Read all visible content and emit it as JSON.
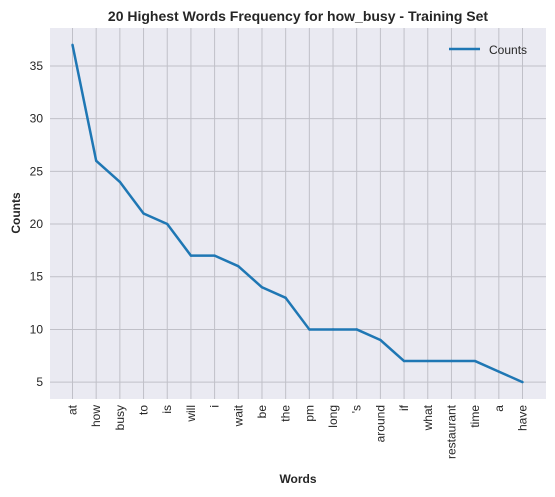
{
  "chart_data": {
    "type": "line",
    "title": "20 Highest Words Frequency for how_busy - Training Set",
    "xlabel": "Words",
    "ylabel": "Counts",
    "categories": [
      "at",
      "how",
      "busy",
      "to",
      "is",
      "will",
      "i",
      "wait",
      "be",
      "the",
      "pm",
      "long",
      "'s",
      "around",
      "if",
      "what",
      "restaurant",
      "time",
      "a",
      "have"
    ],
    "series": [
      {
        "name": "Counts",
        "values": [
          37,
          26,
          24,
          21,
          20,
          17,
          17,
          16,
          14,
          13,
          10,
          10,
          10,
          9,
          7,
          7,
          7,
          7,
          6,
          5
        ]
      }
    ],
    "ylim": [
      3.4,
      38.6
    ],
    "yticks": [
      5,
      10,
      15,
      20,
      25,
      30,
      35
    ],
    "grid": true,
    "legend_position": "top-right",
    "colors": {
      "background": "#eaeaf2",
      "grid": "#c0c0c8",
      "line": "#1f77b4",
      "text": "#262626"
    }
  }
}
